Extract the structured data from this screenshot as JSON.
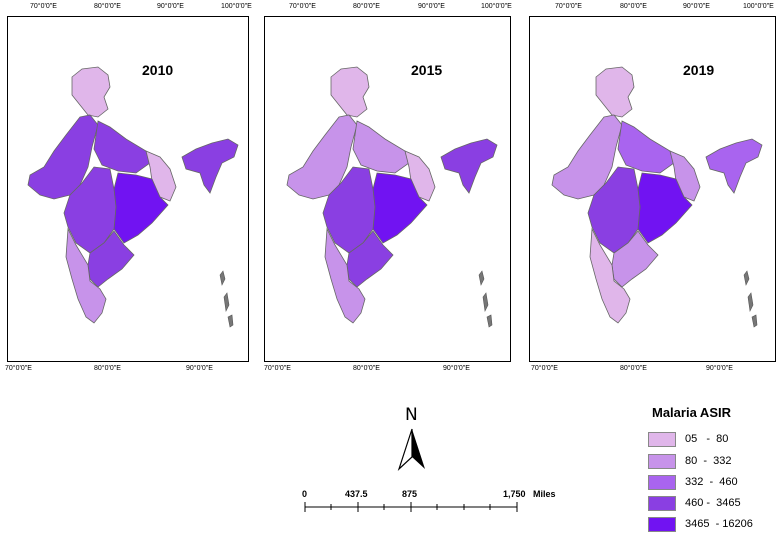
{
  "maps": [
    {
      "year": "2010",
      "top_ticks": [
        "70°0'0\"E",
        "80°0'0\"E",
        "90°0'0\"E",
        "100°0'0\"E"
      ],
      "bottom_ticks": [
        "70°0'0\"E",
        "80°0'0\"E",
        "90°0'0\"E"
      ]
    },
    {
      "year": "2015",
      "top_ticks": [
        "70°0'0\"E",
        "80°0'0\"E",
        "90°0'0\"E",
        "100°0'0\"E"
      ],
      "bottom_ticks": [
        "70°0'0\"E",
        "80°0'0\"E",
        "90°0'0\"E"
      ]
    },
    {
      "year": "2019",
      "top_ticks": [
        "70°0'0\"E",
        "80°0'0\"E",
        "90°0'0\"E",
        "100°0'0\"E"
      ],
      "bottom_ticks": [
        "70°0'0\"E",
        "80°0'0\"E",
        "90°0'0\"E"
      ]
    }
  ],
  "north_arrow": {
    "label": "N"
  },
  "scale_bar": {
    "labels": [
      "0",
      "437.5",
      "875",
      "1,750"
    ],
    "unit": "Miles"
  },
  "legend": {
    "title": "Malaria ASIR",
    "classes": [
      {
        "label": "05   -  80",
        "color": "#e0b6ea"
      },
      {
        "label": "80  -  332",
        "color": "#c793ea"
      },
      {
        "label": "332  -  460",
        "color": "#a964ef"
      },
      {
        "label": "460 -  3465",
        "color": "#8a3fe2"
      },
      {
        "label": "3465  - 16206",
        "color": "#7113f2"
      }
    ]
  }
}
